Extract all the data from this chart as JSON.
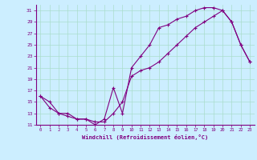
{
  "xlabel": "Windchill (Refroidissement éolien,°C)",
  "bg_color": "#cceeff",
  "line_color": "#800080",
  "grid_color": "#aaddcc",
  "xlim": [
    -0.5,
    23.5
  ],
  "ylim": [
    11,
    32
  ],
  "xticks": [
    0,
    1,
    2,
    3,
    4,
    5,
    6,
    7,
    8,
    9,
    10,
    11,
    12,
    13,
    14,
    15,
    16,
    17,
    18,
    19,
    20,
    21,
    22,
    23
  ],
  "yticks": [
    11,
    13,
    15,
    17,
    19,
    21,
    23,
    25,
    27,
    29,
    31
  ],
  "hours": [
    0,
    1,
    2,
    3,
    4,
    5,
    6,
    7,
    8,
    9,
    10,
    11,
    12,
    13,
    14,
    15,
    16,
    17,
    18,
    19,
    20,
    21,
    22,
    23
  ],
  "temp_up": [
    16,
    15,
    13,
    13,
    12,
    12,
    11,
    12,
    17.5,
    13,
    21,
    23,
    25,
    28,
    28.5,
    29.5,
    30,
    31,
    31.5,
    31.5,
    31,
    29,
    25,
    22
  ],
  "temp_dn": [
    16,
    14,
    13,
    12.5,
    12,
    12,
    11.5,
    11.5,
    13,
    15,
    19.5,
    20.5,
    21,
    22,
    23.5,
    25,
    26.5,
    28,
    29,
    30,
    31,
    29,
    25,
    22
  ]
}
